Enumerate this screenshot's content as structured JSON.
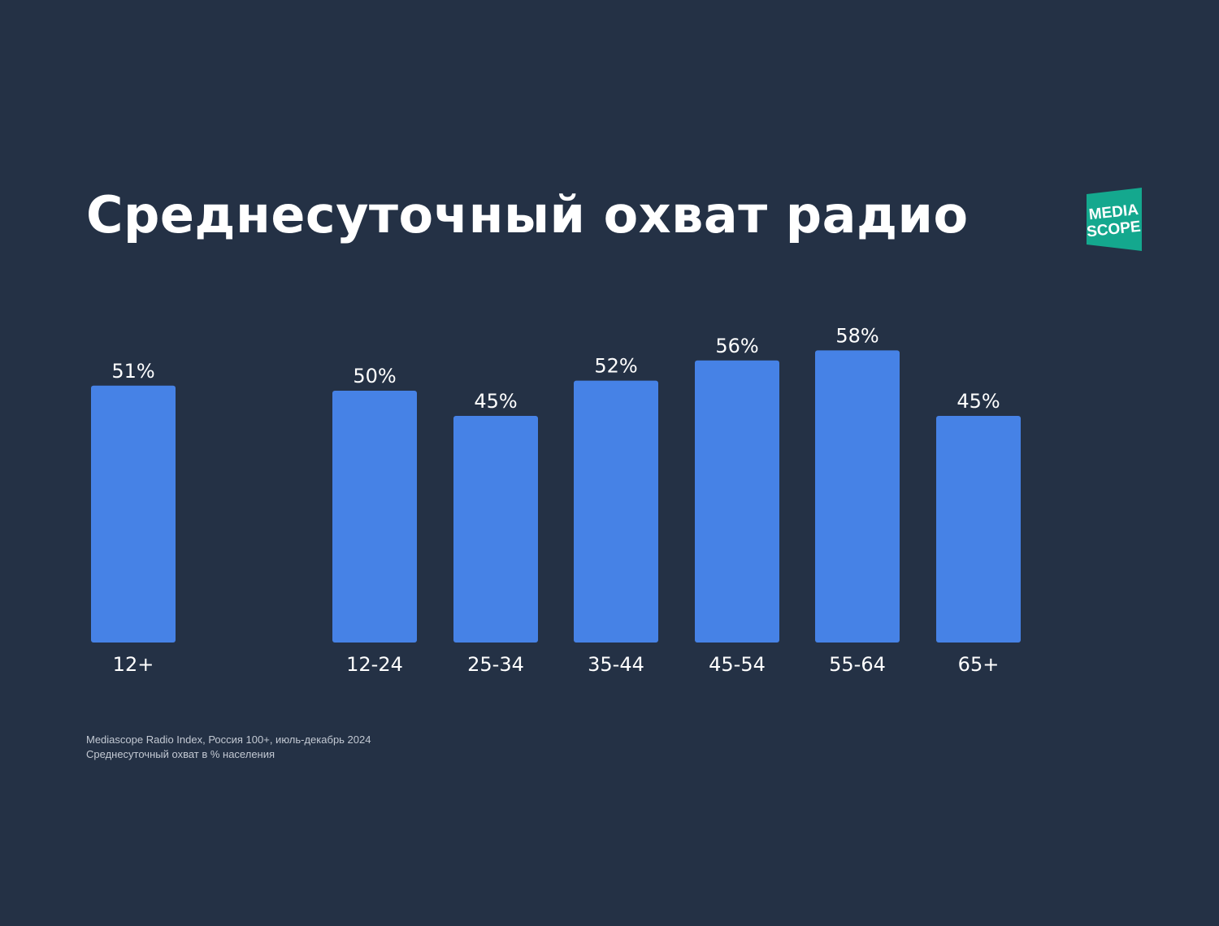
{
  "title": "Среднесуточный охват радио",
  "logo": {
    "line1": "MEDIA",
    "line2": "SCOPE",
    "color": "#14a88e"
  },
  "footnote": {
    "line1": "Mediascope Radio Index, Россия 100+, июль-декабрь 2024",
    "line2": "Среднесуточный охват в % населения"
  },
  "colors": {
    "background": "#243145",
    "bar": "#4682e6"
  },
  "chart_data": {
    "type": "bar",
    "title": "Среднесуточный охват радио",
    "categories": [
      "12+",
      "12-24",
      "25-34",
      "35-44",
      "45-54",
      "55-64",
      "65+"
    ],
    "values": [
      51,
      50,
      45,
      52,
      56,
      58,
      45
    ],
    "value_labels": [
      "51%",
      "50%",
      "45%",
      "52%",
      "56%",
      "58%",
      "45%"
    ],
    "unit": "%",
    "xlabel": "",
    "ylabel": "",
    "grid": false
  }
}
